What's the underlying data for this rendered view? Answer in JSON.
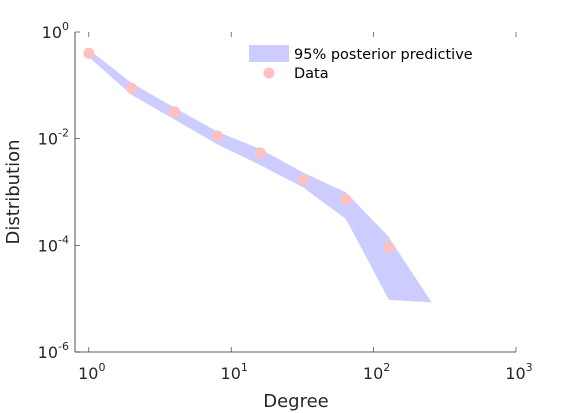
{
  "chart_data": {
    "type": "scatter",
    "xlabel": "Degree",
    "ylabel": "Distribution",
    "x_scale": "log",
    "y_scale": "log",
    "xlim": [
      0.8,
      1000
    ],
    "ylim": [
      1e-06,
      1
    ],
    "x_ticks": [
      {
        "value": 1,
        "base": "10",
        "exp": "0"
      },
      {
        "value": 10,
        "base": "10",
        "exp": "1"
      },
      {
        "value": 100,
        "base": "10",
        "exp": "2"
      },
      {
        "value": 1000,
        "base": "10",
        "exp": "3"
      }
    ],
    "y_ticks": [
      {
        "value": 1e-06,
        "base": "10",
        "exp": "-6"
      },
      {
        "value": 0.0001,
        "base": "10",
        "exp": "-4"
      },
      {
        "value": 0.01,
        "base": "10",
        "exp": "-2"
      },
      {
        "value": 1,
        "base": "10",
        "exp": "0"
      }
    ],
    "grid": false,
    "legend_position": "top-right",
    "series": [
      {
        "name": "95% posterior predictive",
        "kind": "band",
        "color": "#ccccff",
        "x": [
          1,
          2,
          4,
          8,
          16,
          32,
          64,
          128,
          128,
          256
        ],
        "upper": [
          0.47,
          0.11,
          0.038,
          0.0135,
          0.0064,
          0.00232,
          0.00098,
          0.000143,
          0.00014,
          8.5e-06
        ],
        "lower": [
          0.34,
          0.066,
          0.023,
          0.0078,
          0.0032,
          0.00122,
          0.00031,
          9.5e-06,
          9.5e-06,
          8.5e-06
        ]
      },
      {
        "name": "Data",
        "kind": "points",
        "color": "#ffc0c0",
        "x": [
          1,
          2,
          4,
          8,
          16,
          32,
          64,
          128
        ],
        "y": [
          0.4,
          0.088,
          0.032,
          0.0112,
          0.0054,
          0.00168,
          0.00072,
          9.2e-05
        ]
      }
    ]
  }
}
